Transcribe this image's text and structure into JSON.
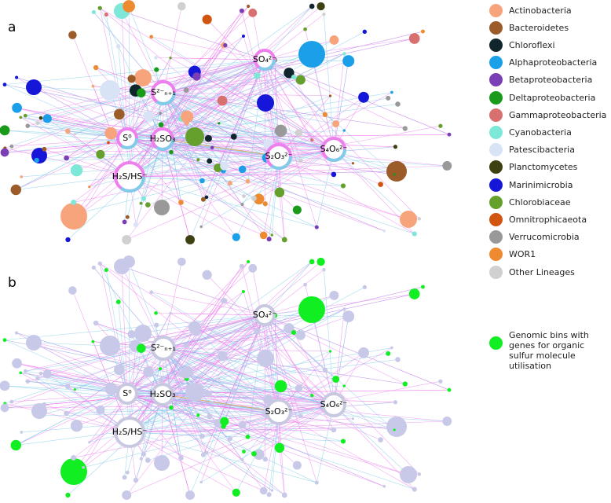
{
  "panels": [
    {
      "label": "a",
      "nodes": [
        {
          "label": "S²⁻ₙ₊₁"
        },
        {
          "label": "S⁰"
        },
        {
          "label": "H₂SO₃"
        },
        {
          "label": "H₂S/HS⁻"
        },
        {
          "label": "SO₄²⁻"
        },
        {
          "label": "S₂O₃²⁻"
        },
        {
          "label": "S₄O₆²⁻"
        }
      ]
    },
    {
      "label": "b",
      "nodes": [
        {
          "label": "S²⁻ₙ₊₁"
        },
        {
          "label": "S⁰"
        },
        {
          "label": "H₂SO₃"
        },
        {
          "label": "H₂S/HS⁻"
        },
        {
          "label": "SO₄²⁻"
        },
        {
          "label": "S₂O₃²⁻"
        },
        {
          "label": "S₄O₆²⁻"
        }
      ]
    }
  ],
  "legend": {
    "entries": [
      {
        "label": "Actinobacteria",
        "color": "#f7a47d"
      },
      {
        "label": "Bacteroidetes",
        "color": "#9b5c2a"
      },
      {
        "label": "Chloroflexi",
        "color": "#10262c"
      },
      {
        "label": "Alphaproteobacteria",
        "color": "#1a9fe8"
      },
      {
        "label": "Betaproteobacteria",
        "color": "#7b3fb5"
      },
      {
        "label": "Deltaproteobacteria",
        "color": "#1a9a1a"
      },
      {
        "label": "Gammaproteobacteria",
        "color": "#d87070"
      },
      {
        "label": "Cyanobacteria",
        "color": "#7ee8d8"
      },
      {
        "label": "Patescibacteria",
        "color": "#d8e4f6"
      },
      {
        "label": "Planctomycetes",
        "color": "#3d4010"
      },
      {
        "label": "Marinimicrobia",
        "color": "#1616d8"
      },
      {
        "label": "Chlorobiaceae",
        "color": "#66a02c"
      },
      {
        "label": "Omnitrophicaeota",
        "color": "#cf5510"
      },
      {
        "label": "Verrucomicrobia",
        "color": "#999999"
      },
      {
        "label": "WOR1",
        "color": "#ee8a30"
      },
      {
        "label": "Other Lineages",
        "color": "#d0d0d0"
      }
    ]
  },
  "legend_b": {
    "label": "Genomic bins with genes for organic sulfur molecule utilisation",
    "color": "#11ee22"
  }
}
